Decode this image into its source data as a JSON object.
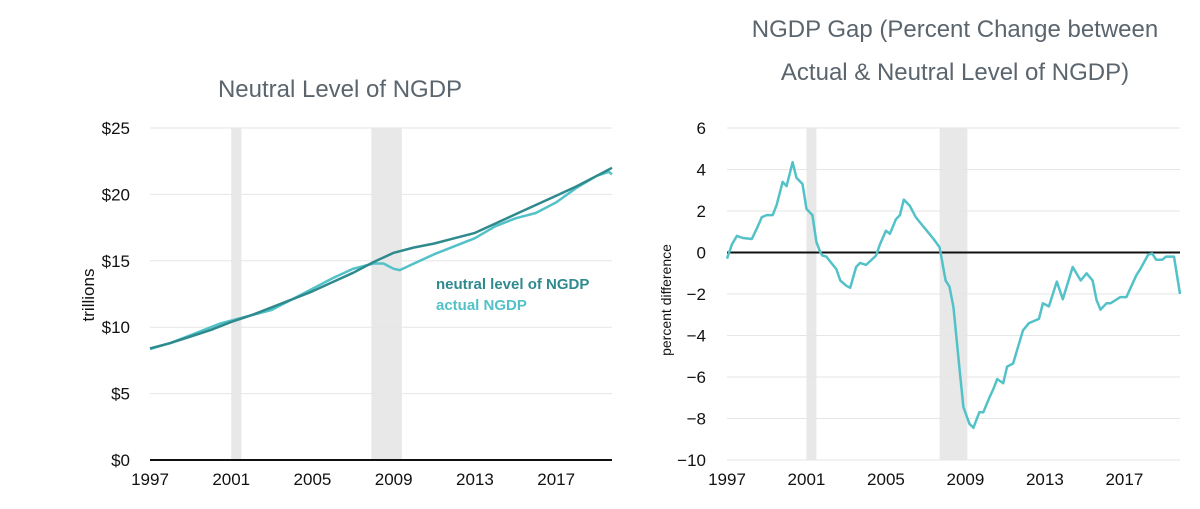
{
  "colors": {
    "neutral": "#2f8a8e",
    "actual": "#52c2c8",
    "grid": "#e6e6e6",
    "recession": "#e8e8e8",
    "title": "#5b656e"
  },
  "chart_data": [
    {
      "type": "line",
      "title": "Neutral Level of NGDP",
      "xlabel": "",
      "ylabel": "trillions",
      "xlim": [
        1997,
        2019.75
      ],
      "ylim": [
        0,
        25
      ],
      "grid": true,
      "yticks": [
        0,
        5,
        10,
        15,
        20,
        25
      ],
      "ytick_labels": [
        "$0",
        "$5",
        "$10",
        "$15",
        "$20",
        "$25"
      ],
      "xticks": [
        1997,
        2001,
        2005,
        2009,
        2013,
        2017
      ],
      "xtick_labels": [
        "1997",
        "2001",
        "2005",
        "2009",
        "2013",
        "2017"
      ],
      "recessions": [
        [
          2001.0,
          2001.5
        ],
        [
          2007.9,
          2009.4
        ]
      ],
      "legend_placement": "center-right",
      "series": [
        {
          "name": "neutral level of NGDP",
          "x": [
            1997,
            1998,
            1999,
            2000,
            2001,
            2002,
            2003,
            2004,
            2005,
            2006,
            2007,
            2008,
            2009,
            2010,
            2011,
            2012,
            2013,
            2014,
            2015,
            2016,
            2017,
            2018,
            2019,
            2019.75
          ],
          "y": [
            8.4,
            8.8,
            9.3,
            9.8,
            10.4,
            10.9,
            11.5,
            12.1,
            12.7,
            13.4,
            14.1,
            14.9,
            15.6,
            16.0,
            16.3,
            16.7,
            17.1,
            17.8,
            18.5,
            19.2,
            19.9,
            20.6,
            21.4,
            22.0
          ]
        },
        {
          "name": "actual NGDP",
          "x": [
            1997,
            1998,
            1999,
            2000,
            2000.5,
            2001,
            2002,
            2003,
            2004,
            2005,
            2006,
            2007,
            2008,
            2008.5,
            2009,
            2009.3,
            2010,
            2011,
            2012,
            2013,
            2014,
            2015,
            2016,
            2017,
            2018,
            2019,
            2019.6,
            2019.75
          ],
          "y": [
            8.35,
            8.8,
            9.4,
            10.0,
            10.3,
            10.5,
            10.9,
            11.3,
            12.1,
            12.9,
            13.7,
            14.4,
            14.8,
            14.8,
            14.4,
            14.3,
            14.8,
            15.5,
            16.1,
            16.7,
            17.6,
            18.2,
            18.6,
            19.4,
            20.5,
            21.4,
            21.7,
            21.5
          ]
        }
      ]
    },
    {
      "type": "line",
      "title": [
        "NGDP Gap (Percent Change between",
        "Actual & Neutral Level of NGDP)"
      ],
      "xlabel": "",
      "ylabel": "percent difference",
      "xlim": [
        1997,
        2019.8
      ],
      "ylim": [
        -10,
        6
      ],
      "grid": true,
      "yticks": [
        6,
        4,
        2,
        0,
        -2,
        -4,
        -6,
        -8,
        -10
      ],
      "ytick_labels": [
        "6",
        "4",
        "2",
        "0",
        "−2",
        "−4",
        "−6",
        "−8",
        "−10"
      ],
      "xticks": [
        1997,
        2001,
        2005,
        2009,
        2013,
        2017
      ],
      "xtick_labels": [
        "1997",
        "2001",
        "2005",
        "2009",
        "2013",
        "2017"
      ],
      "recessions": [
        [
          2001.0,
          2001.5
        ],
        [
          2007.7,
          2009.1
        ]
      ],
      "series": [
        {
          "name": "NGDP gap",
          "x": [
            1997.0,
            1997.25,
            1997.5,
            1997.8,
            1998.25,
            1998.5,
            1998.75,
            1999.0,
            1999.3,
            1999.5,
            1999.8,
            2000.0,
            2000.3,
            2000.5,
            2000.8,
            2001.0,
            2001.3,
            2001.5,
            2001.7,
            2001.8,
            2002.0,
            2002.5,
            2002.7,
            2003.0,
            2003.2,
            2003.5,
            2003.7,
            2004.0,
            2004.5,
            2004.7,
            2005.0,
            2005.2,
            2005.5,
            2005.7,
            2005.9,
            2006.2,
            2006.5,
            2006.8,
            2007.1,
            2007.4,
            2007.7,
            2008.0,
            2008.2,
            2008.4,
            2008.7,
            2008.9,
            2009.2,
            2009.4,
            2009.7,
            2009.9,
            2010.2,
            2010.4,
            2010.6,
            2010.9,
            2011.1,
            2011.4,
            2011.9,
            2012.2,
            2012.7,
            2012.9,
            2013.2,
            2013.6,
            2013.9,
            2014.4,
            2014.8,
            2015.1,
            2015.4,
            2015.6,
            2015.8,
            2016.1,
            2016.3,
            2016.8,
            2017.1,
            2017.6,
            2017.8,
            2018.2,
            2018.4,
            2018.6,
            2018.9,
            2019.1,
            2019.5,
            2019.8
          ],
          "y": [
            -0.3,
            0.4,
            0.8,
            0.7,
            0.65,
            1.15,
            1.7,
            1.8,
            1.8,
            2.3,
            3.4,
            3.2,
            4.35,
            3.6,
            3.3,
            2.1,
            1.8,
            0.5,
            0,
            -0.15,
            -0.2,
            -0.8,
            -1.35,
            -1.6,
            -1.7,
            -0.7,
            -0.5,
            -0.6,
            -0.15,
            0.4,
            1.05,
            0.9,
            1.6,
            1.8,
            2.55,
            2.25,
            1.7,
            1.35,
            1.0,
            0.65,
            0.25,
            -1.35,
            -1.65,
            -2.65,
            -5.6,
            -7.45,
            -8.25,
            -8.45,
            -7.7,
            -7.7,
            -7.0,
            -6.6,
            -6.1,
            -6.3,
            -5.5,
            -5.35,
            -3.75,
            -3.4,
            -3.2,
            -2.45,
            -2.6,
            -1.4,
            -2.25,
            -0.7,
            -1.35,
            -1.0,
            -1.35,
            -2.3,
            -2.75,
            -2.45,
            -2.45,
            -2.15,
            -2.15,
            -1.1,
            -0.8,
            -0.1,
            -0.05,
            -0.35,
            -0.35,
            -0.2,
            -0.2,
            -2.0
          ]
        }
      ]
    }
  ]
}
